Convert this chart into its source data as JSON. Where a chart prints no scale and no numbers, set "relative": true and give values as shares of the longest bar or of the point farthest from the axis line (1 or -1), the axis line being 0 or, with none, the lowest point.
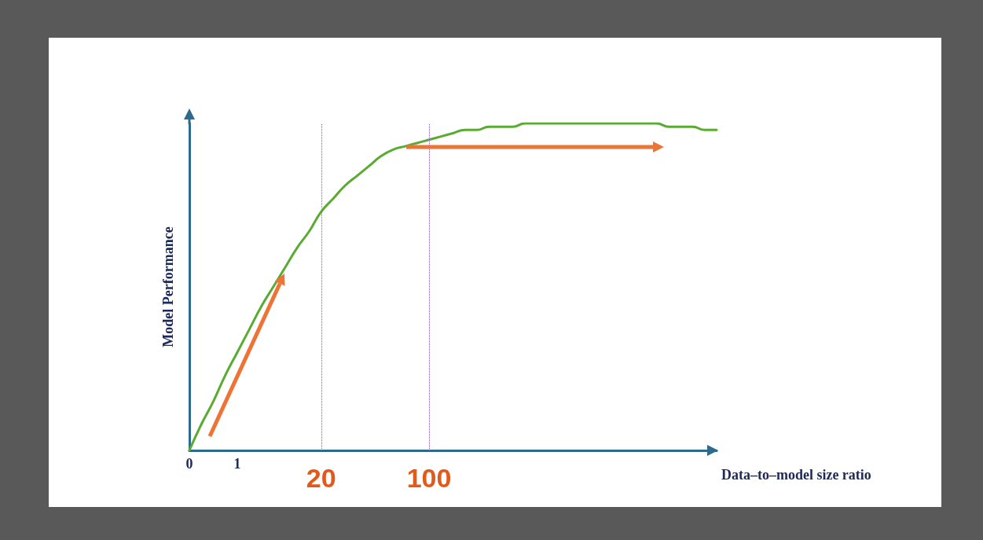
{
  "chart_data": {
    "type": "line",
    "relative": true,
    "xlabel": "Data–to–model size ratio",
    "ylabel": "Model Performance",
    "categories": [
      "0",
      null,
      null,
      null,
      "1",
      null,
      null,
      null,
      null,
      null,
      null,
      "20",
      null,
      null,
      null,
      null,
      null,
      null,
      null,
      null,
      "100",
      null,
      null,
      null,
      null,
      null,
      null,
      null,
      null,
      null,
      null,
      null,
      null,
      null,
      null,
      null,
      null,
      null,
      null,
      null,
      null,
      null,
      null,
      null,
      null
    ],
    "series": [
      {
        "color": "#5aab32",
        "values": [
          0,
          0.08,
          0.15,
          0.23,
          0.3,
          0.37,
          0.44,
          0.5,
          0.56,
          0.62,
          0.67,
          0.73,
          0.77,
          0.81,
          0.84,
          0.87,
          0.9,
          0.92,
          0.93,
          0.94,
          0.95,
          0.96,
          0.97,
          0.98,
          0.98,
          0.99,
          0.99,
          0.99,
          1,
          1,
          1,
          1,
          1,
          1,
          1,
          1,
          1,
          1,
          1,
          1,
          0.99,
          0.99,
          0.99,
          0.98,
          0.98
        ]
      }
    ],
    "ref_lines": [
      {
        "axis": "x",
        "value": "20",
        "color": "#8a5fc0",
        "line_style": "dotted"
      },
      {
        "axis": "x",
        "value": "100",
        "color": "#8a5fc0",
        "line_style": "dotted"
      }
    ],
    "marker": "none",
    "grid": false
  }
}
